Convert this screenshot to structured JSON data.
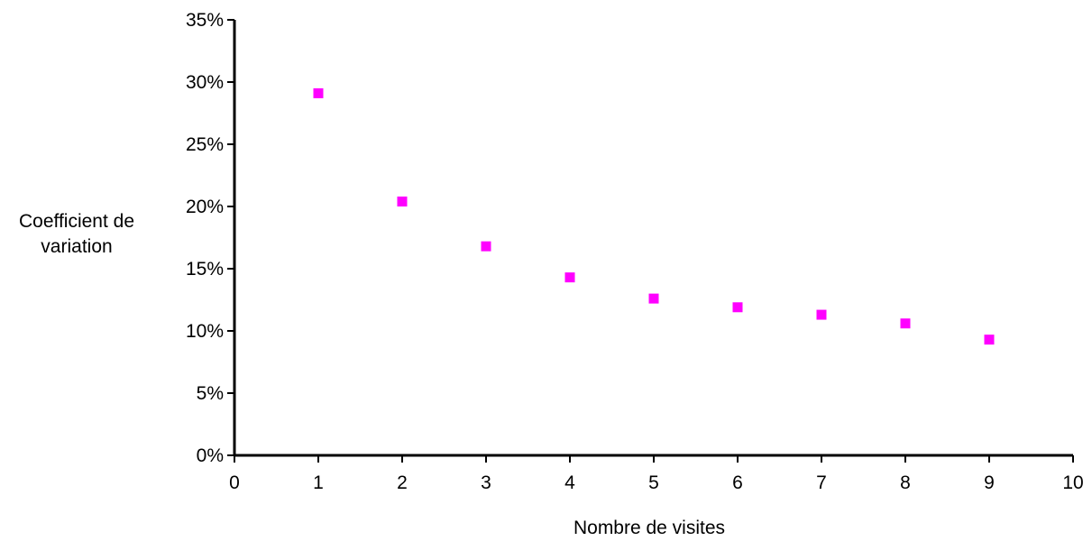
{
  "chart_data": {
    "type": "scatter",
    "title": "",
    "xlabel": "Nombre de visites",
    "ylabel_lines": [
      "Coefficient de",
      "variation"
    ],
    "xlim": [
      0,
      10
    ],
    "ylim": [
      0,
      0.35
    ],
    "x_ticks": [
      0,
      1,
      2,
      3,
      4,
      5,
      6,
      7,
      8,
      9,
      10
    ],
    "x_tick_labels": [
      "0",
      "1",
      "2",
      "3",
      "4",
      "5",
      "6",
      "7",
      "8",
      "9",
      "10"
    ],
    "y_ticks": [
      0,
      0.05,
      0.1,
      0.15,
      0.2,
      0.25,
      0.3,
      0.35
    ],
    "y_tick_labels": [
      "0%",
      "5%",
      "10%",
      "15%",
      "20%",
      "25%",
      "30%",
      "35%"
    ],
    "grid": false,
    "legend": "none",
    "series": [
      {
        "marker": "square",
        "color": "#ff00ff",
        "x": [
          1,
          2,
          3,
          4,
          5,
          6,
          7,
          8,
          9
        ],
        "y": [
          0.291,
          0.204,
          0.168,
          0.143,
          0.126,
          0.119,
          0.113,
          0.106,
          0.093
        ]
      }
    ]
  }
}
